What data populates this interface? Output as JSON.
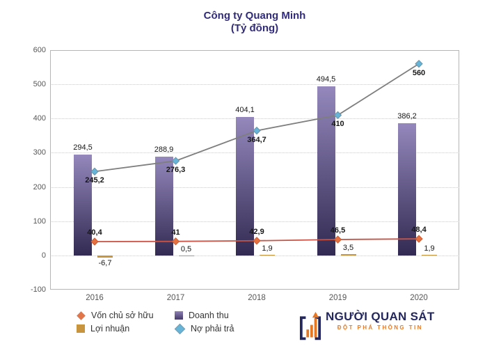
{
  "title": {
    "line1": "Công ty Quang Minh",
    "line2": "(Tỷ đồng)",
    "color": "#312b7c"
  },
  "chart_data": {
    "type": "combo",
    "categories": [
      "2016",
      "2017",
      "2018",
      "2019",
      "2020"
    ],
    "series": [
      {
        "name": "Doanh thu",
        "type": "bar",
        "values": [
          294.5,
          288.9,
          404.1,
          494.5,
          386.2
        ],
        "labels": [
          "294,5",
          "288,9",
          "404,1",
          "494,5",
          "386,2"
        ],
        "color_top": "#9488bc",
        "color_bottom": "#322a52",
        "label_bold": false
      },
      {
        "name": "Lợi nhuận",
        "type": "bar",
        "values": [
          -6.7,
          0.5,
          1.9,
          3.5,
          1.9
        ],
        "labels": [
          "-6,7",
          "0,5",
          "1,9",
          "3,5",
          "1,9"
        ],
        "color": "#c8943e",
        "label_bold": false
      },
      {
        "name": "Vốn chủ sở hữu",
        "type": "line",
        "values": [
          40.4,
          41,
          42.9,
          46.5,
          48.4
        ],
        "labels": [
          "40,4",
          "41",
          "42,9",
          "46,5",
          "48,4"
        ],
        "line_color": "#c75446",
        "marker_color": "#e4713f",
        "marker_border": "#cf5a33",
        "label_position": "above",
        "label_bold": true
      },
      {
        "name": "Nợ phải trả",
        "type": "line",
        "values": [
          245.2,
          276.3,
          364.7,
          410,
          560
        ],
        "labels": [
          "245,2",
          "276,3",
          "364,7",
          "410",
          "560"
        ],
        "line_color": "#7f7f7f",
        "marker_color": "#66b5d8",
        "marker_border": "#6a93a8",
        "label_position": "below",
        "label_bold": true
      }
    ],
    "y_ticks": [
      -100,
      0,
      100,
      200,
      300,
      400,
      500,
      600
    ],
    "ylim": [
      -100,
      600
    ],
    "grid": "dotted-horizontal",
    "legend_position": "bottom"
  },
  "legend": {
    "items": [
      {
        "label": "Vốn chủ sở hữu",
        "swatch": "diamond-orange"
      },
      {
        "label": "Lợi nhuận",
        "swatch": "square-tan"
      },
      {
        "label": "Doanh thu",
        "swatch": "square-purple"
      },
      {
        "label": "Nợ phải trả",
        "swatch": "diamond-blue"
      }
    ]
  },
  "logo": {
    "name": "NGƯỜI QUAN SÁT",
    "tagline": "ĐỘT PHÁ THÔNG TIN",
    "icon": "bar-chart-brackets-icon",
    "navy": "#23275e",
    "orange": "#e87722"
  }
}
